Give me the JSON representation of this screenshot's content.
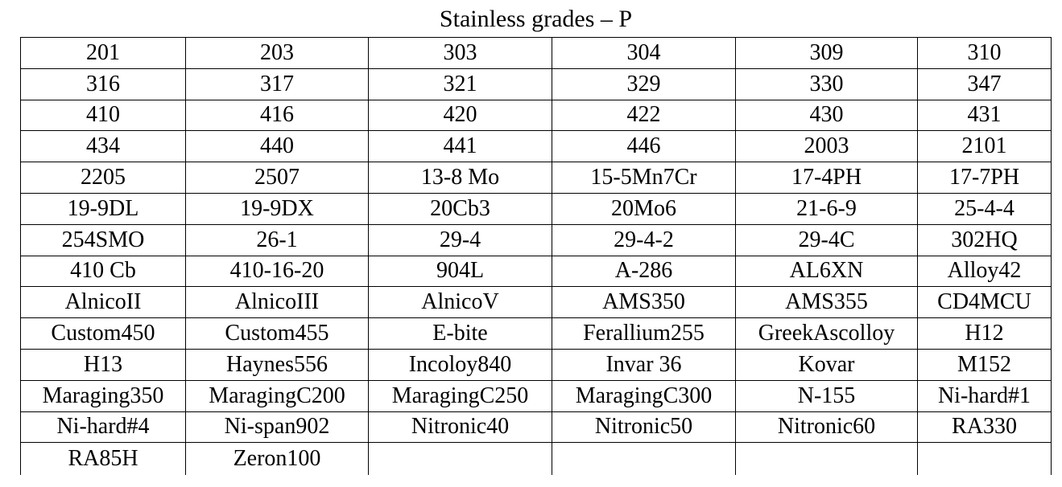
{
  "title": "Stainless grades – P",
  "rows": [
    [
      "201",
      "203",
      "303",
      "304",
      "309",
      "310"
    ],
    [
      "316",
      "317",
      "321",
      "329",
      "330",
      "347"
    ],
    [
      "410",
      "416",
      "420",
      "422",
      "430",
      "431"
    ],
    [
      "434",
      "440",
      "441",
      "446",
      "2003",
      "2101"
    ],
    [
      "2205",
      "2507",
      "13-8 Mo",
      "15-5Mn7Cr",
      "17-4PH",
      "17-7PH"
    ],
    [
      "19-9DL",
      "19-9DX",
      "20Cb3",
      "20Mo6",
      "21-6-9",
      "25-4-4"
    ],
    [
      "254SMO",
      "26-1",
      "29-4",
      "29-4-2",
      "29-4C",
      "302HQ"
    ],
    [
      "410 Cb",
      "410-16-20",
      "904L",
      "A-286",
      "AL6XN",
      "Alloy42"
    ],
    [
      "AlnicoII",
      "AlnicoIII",
      "AlnicoV",
      "AMS350",
      "AMS355",
      "CD4MCU"
    ],
    [
      "Custom450",
      "Custom455",
      "E-bite",
      "Ferallium255",
      "GreekAscolloy",
      "H12"
    ],
    [
      "H13",
      "Haynes556",
      "Incoloy840",
      "Invar 36",
      "Kovar",
      "M152"
    ],
    [
      "Maraging350",
      "MaragingC200",
      "MaragingC250",
      "MaragingC300",
      "N-155",
      "Ni-hard#1"
    ],
    [
      "Ni-hard#4",
      "Ni-span902",
      "Nitronic40",
      "Nitronic50",
      "Nitronic60",
      "RA330"
    ],
    [
      "RA85H",
      "Zeron100",
      "",
      "",
      "",
      ""
    ]
  ]
}
